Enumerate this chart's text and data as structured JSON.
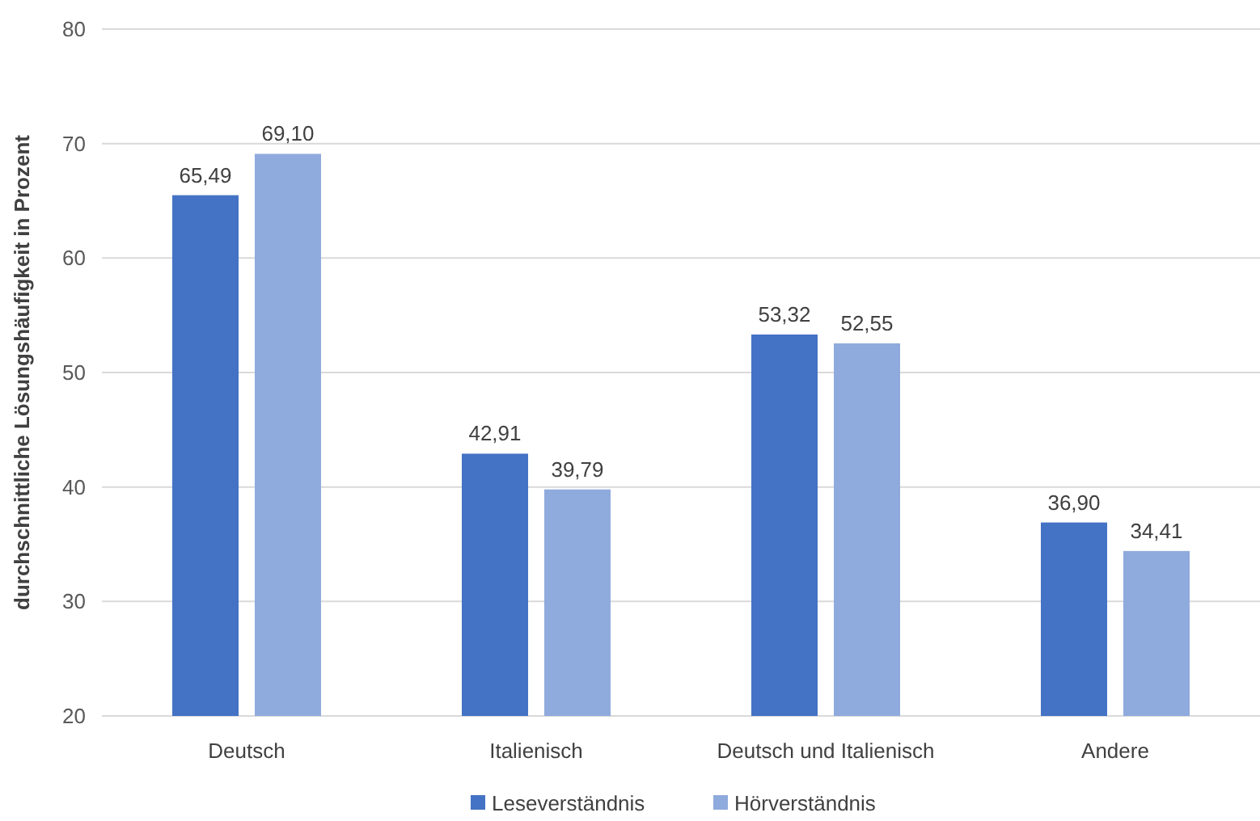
{
  "chart_data": {
    "type": "bar",
    "ylabel": "durchschnittliche Lösungshäufigkeit in Prozent",
    "categories": [
      "Deutsch",
      "Italienisch",
      "Deutsch und Italienisch",
      "Andere"
    ],
    "series": [
      {
        "name": "Leseverständnis",
        "color": "#4472c4",
        "values": [
          65.49,
          42.91,
          53.32,
          36.9
        ],
        "value_labels": [
          "65,49",
          "42,91",
          "53,32",
          "36,90"
        ]
      },
      {
        "name": "Hörverständnis",
        "color": "#8faadc",
        "values": [
          69.1,
          39.79,
          52.55,
          34.41
        ],
        "value_labels": [
          "69,10",
          "39,79",
          "52,55",
          "34,41"
        ]
      }
    ],
    "ylim": [
      20,
      80
    ],
    "yticks": [
      20,
      30,
      40,
      50,
      60,
      70,
      80
    ],
    "grid": "y",
    "legend": "bottom"
  }
}
